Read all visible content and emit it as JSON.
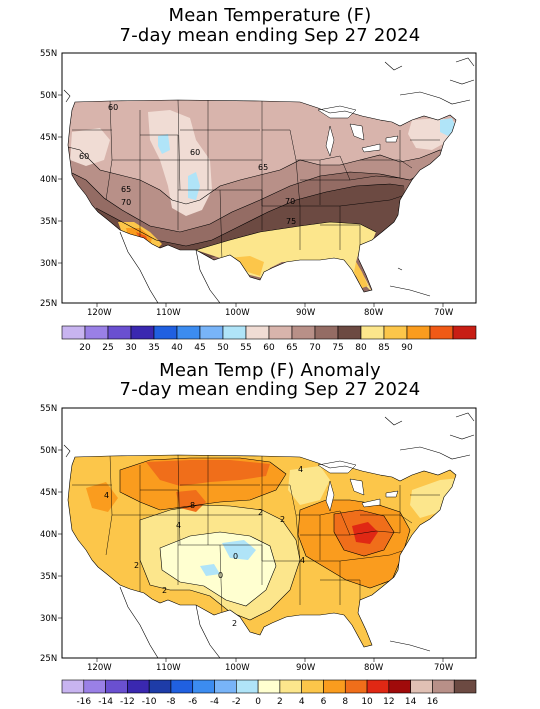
{
  "panel1": {
    "title_line1": "Mean Temperature (F)",
    "title_line2": "7-day mean ending Sep 27 2024",
    "lat_ticks": [
      "55N",
      "50N",
      "45N",
      "40N",
      "35N",
      "30N",
      "25N"
    ],
    "lon_ticks": [
      "120W",
      "110W",
      "100W",
      "90W",
      "80W",
      "70W"
    ],
    "contour_labels": [
      "60",
      "60",
      "60",
      "65",
      "65",
      "70",
      "70",
      "75"
    ],
    "colorbar": {
      "labels": [
        "20",
        "25",
        "30",
        "35",
        "40",
        "45",
        "50",
        "55",
        "60",
        "65",
        "70",
        "75",
        "80",
        "85",
        "90"
      ],
      "colors": [
        "#c8b4f0",
        "#9a80e6",
        "#6a50d0",
        "#3a28b0",
        "#2060e0",
        "#3c8cf0",
        "#78b4f8",
        "#b0e4f8",
        "#f0dcd4",
        "#d8b4ac",
        "#b89088",
        "#946c64",
        "#6c4a42",
        "#fce68c",
        "#fcc64a",
        "#fa9c1e",
        "#f05a16",
        "#c81e14"
      ]
    },
    "region_colors": {
      "c55_60": "#f0dcd4",
      "c60_65": "#d8b4ac",
      "c65_70": "#b89088",
      "c70_75": "#946c64",
      "c75_80": "#6c4a42",
      "c80_85": "#fce68c",
      "c85_90": "#fcc64a",
      "c90_95": "#fa9c1e",
      "c95": "#f05a16",
      "cold": "#b0e4f8"
    }
  },
  "panel2": {
    "title_line1": "Mean Temp (F) Anomaly",
    "title_line2": "7-day mean ending Sep 27 2024",
    "lat_ticks": [
      "55N",
      "50N",
      "45N",
      "40N",
      "35N",
      "30N",
      "25N"
    ],
    "lon_ticks": [
      "120W",
      "110W",
      "100W",
      "90W",
      "80W",
      "70W"
    ],
    "contour_labels": [
      "4",
      "8",
      "4",
      "2",
      "2",
      "0",
      "0",
      "2",
      "4",
      "4",
      "2",
      "2"
    ],
    "colorbar": {
      "labels": [
        "-16",
        "-14",
        "-12",
        "-10",
        "-8",
        "-6",
        "-4",
        "-2",
        "0",
        "2",
        "4",
        "6",
        "8",
        "10",
        "12",
        "14",
        "16"
      ],
      "colors": [
        "#c8b4f0",
        "#9a80e6",
        "#6a50d0",
        "#3a28b0",
        "#1e3ca8",
        "#2060e0",
        "#3c8cf0",
        "#78b4f8",
        "#b0e4f8",
        "#ffffd0",
        "#fce68c",
        "#fcc64a",
        "#fa9c1e",
        "#f06e1a",
        "#e02814",
        "#a00a0a",
        "#e0c0b4",
        "#b89088",
        "#6c4a42"
      ]
    },
    "region_colors": {
      "a0_2": "#ffffd0",
      "a2_4": "#fce68c",
      "a4_6": "#fcc64a",
      "a6_8": "#fa9c1e",
      "a8_10": "#f06e1a",
      "a10_12": "#e02814",
      "neg": "#b0e4f8"
    }
  }
}
